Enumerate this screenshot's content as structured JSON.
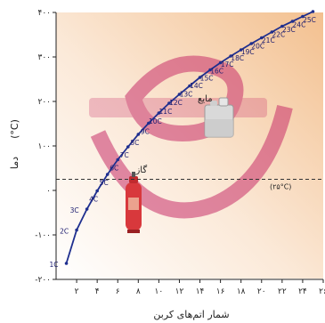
{
  "chart_data": {
    "type": "line",
    "xlabel": "شمار اتم‌های کربن",
    "ylabel": "دما",
    "ylabel_unit": "(°C)",
    "xlim": [
      0,
      26
    ],
    "ylim": [
      -200,
      400
    ],
    "x_ticks": [
      2,
      4,
      6,
      8,
      10,
      12,
      14,
      16,
      18,
      20,
      22,
      24,
      26
    ],
    "x_tick_labels": [
      "۲",
      "۴",
      "۶",
      "۸",
      "۱۰",
      "۱۲",
      "۱۴",
      "۱۶",
      "۱۸",
      "۲۰",
      "۲۲",
      "۲۴",
      "۲۶"
    ],
    "y_ticks": [
      -200,
      -100,
      0,
      100,
      200,
      300,
      400
    ],
    "y_tick_labels": [
      "-۲۰۰",
      "-۱۰۰",
      "۰",
      "۱۰۰",
      "۲۰۰",
      "۳۰۰",
      "۴۰۰"
    ],
    "grid": false,
    "reference_line": {
      "y": 25,
      "label": "(۲۵°C)"
    },
    "annotations": [
      {
        "text": "گاز",
        "x": 8.3,
        "y": 40
      },
      {
        "text": "مایع",
        "x": 14.5,
        "y": 200
      }
    ],
    "colors": {
      "curve": "#1f2f8f",
      "point": "#1f2f8f",
      "label": "#1a1a6e",
      "gradient_start": "#ffffff",
      "gradient_end": "#f3c08f",
      "watermark": "#c8306a",
      "ref_line": "#333333"
    },
    "series": [
      {
        "x": [
          1,
          2,
          3,
          4,
          5,
          6,
          7,
          8,
          9,
          10,
          11,
          12,
          13,
          14,
          15,
          16,
          17,
          18,
          19,
          20,
          21,
          22,
          23,
          24,
          25
        ],
        "y": [
          -164,
          -89,
          -42,
          -1,
          36,
          69,
          98,
          126,
          151,
          174,
          196,
          216,
          235,
          254,
          271,
          287,
          302,
          316,
          330,
          343,
          356,
          369,
          380,
          391,
          402
        ],
        "point_labels": [
          "1C",
          "2C",
          "3C",
          "4C",
          "5C",
          "6C",
          "7C",
          "8C",
          "9C",
          "10C",
          "11C",
          "12C",
          "13C",
          "14C",
          "15C",
          "16C",
          "17C",
          "18C",
          "19C",
          "20C",
          "21C",
          "22C",
          "23C",
          "24C",
          "25C"
        ]
      }
    ]
  }
}
